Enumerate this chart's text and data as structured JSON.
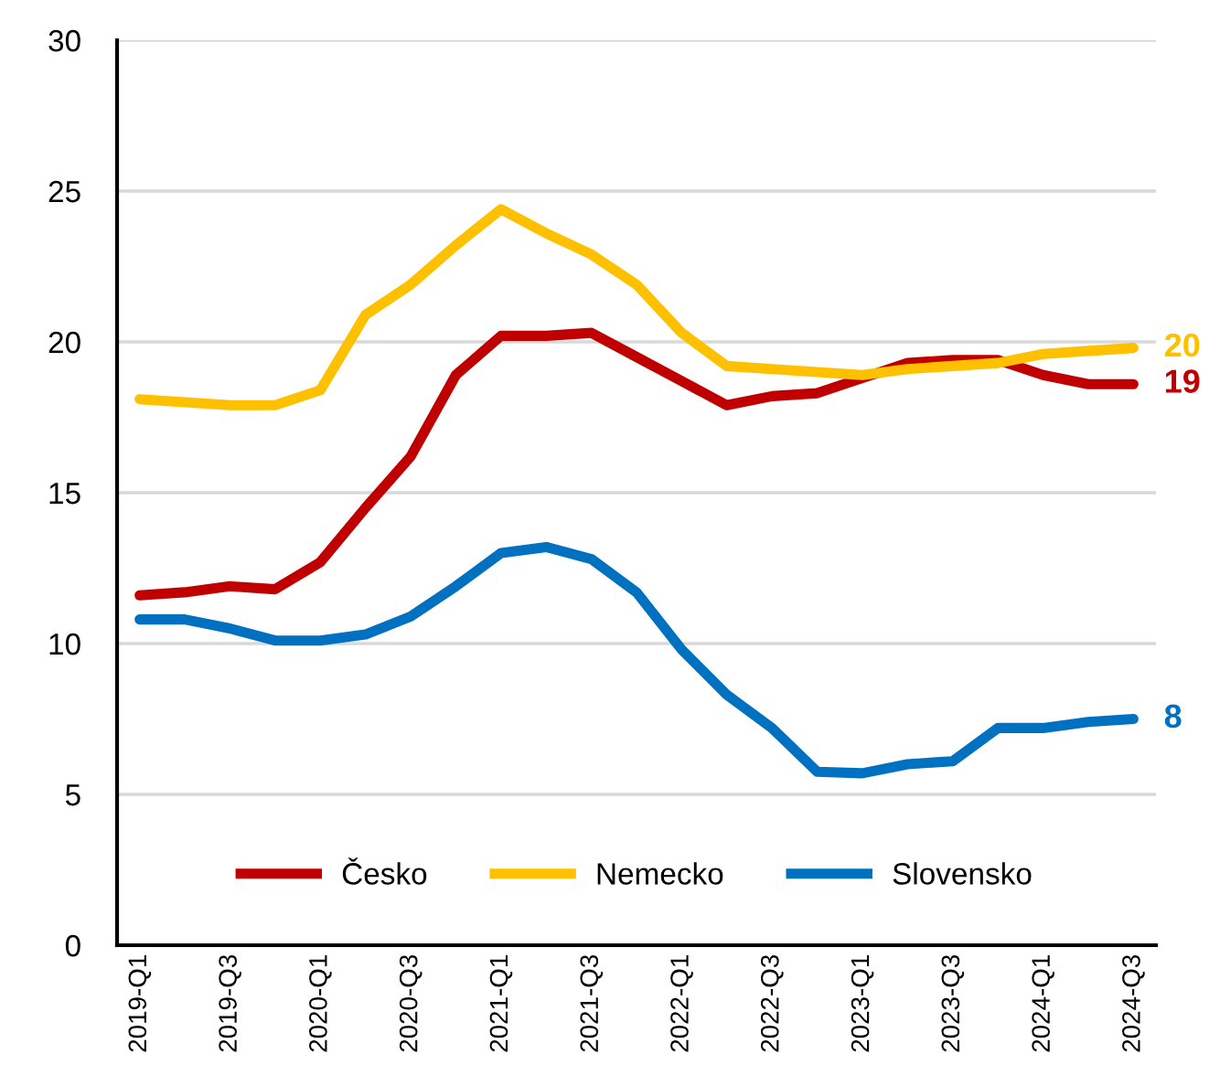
{
  "chart_data": {
    "type": "line",
    "categories": [
      "2019-Q1",
      null,
      "2019-Q3",
      null,
      "2020-Q1",
      null,
      "2020-Q3",
      null,
      "2021-Q1",
      null,
      "2021-Q3",
      null,
      "2022-Q1",
      null,
      "2022-Q3",
      null,
      "2023-Q1",
      null,
      "2023-Q3",
      null,
      "2024-Q1",
      null,
      "2024-Q3"
    ],
    "series": [
      {
        "name": "Česko",
        "color": "#c00000",
        "values": [
          11.6,
          11.7,
          11.9,
          11.8,
          12.7,
          14.5,
          16.2,
          18.9,
          20.2,
          20.2,
          20.3,
          19.5,
          18.7,
          17.9,
          18.2,
          18.3,
          18.8,
          19.3,
          19.4,
          19.4,
          18.9,
          18.6,
          18.6
        ],
        "value_labels": [
          null,
          null,
          null,
          null,
          null,
          null,
          null,
          null,
          null,
          null,
          null,
          null,
          null,
          null,
          null,
          null,
          null,
          null,
          null,
          null,
          null,
          null,
          "19"
        ]
      },
      {
        "name": "Nemecko",
        "color": "#ffc000",
        "values": [
          18.1,
          18.0,
          17.9,
          17.9,
          18.4,
          20.9,
          21.9,
          23.2,
          24.4,
          23.6,
          22.9,
          21.9,
          20.3,
          19.2,
          19.1,
          19.0,
          18.9,
          19.1,
          19.2,
          19.3,
          19.6,
          19.7,
          19.8
        ],
        "value_labels": [
          null,
          null,
          null,
          null,
          null,
          null,
          null,
          null,
          null,
          null,
          null,
          null,
          null,
          null,
          null,
          null,
          null,
          null,
          null,
          null,
          null,
          null,
          "20"
        ]
      },
      {
        "name": "Slovensko",
        "color": "#0070c0",
        "values": [
          10.8,
          10.8,
          10.5,
          10.1,
          10.1,
          10.3,
          10.9,
          11.9,
          13.0,
          13.2,
          12.8,
          11.7,
          9.8,
          8.3,
          7.2,
          5.75,
          5.7,
          6.0,
          6.1,
          7.2,
          7.2,
          7.4,
          7.5
        ],
        "value_labels": [
          null,
          null,
          null,
          null,
          null,
          null,
          null,
          null,
          null,
          null,
          null,
          null,
          null,
          null,
          null,
          null,
          null,
          null,
          null,
          null,
          null,
          null,
          "8"
        ]
      }
    ],
    "ylim": [
      0,
      30
    ],
    "yticks": [
      0,
      5,
      10,
      15,
      20,
      25,
      30
    ],
    "grid": "y",
    "legend": "bottom",
    "marker": "none",
    "line_style": "solid"
  }
}
